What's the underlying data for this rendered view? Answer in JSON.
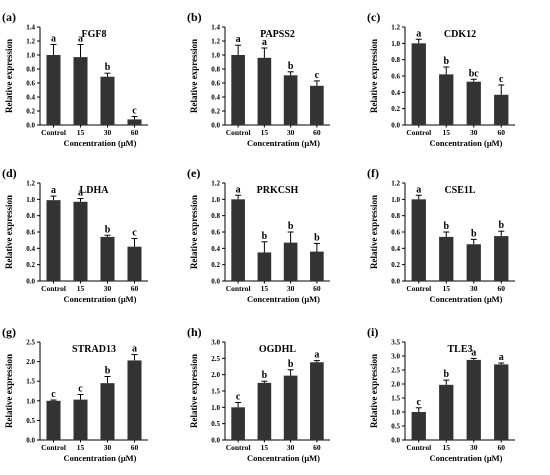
{
  "chart_data": [
    {
      "panel": "(a)",
      "type": "bar",
      "title": "FGF8",
      "ylabel": "Relative expression",
      "xlabel": "Concentration (μM)",
      "categories": [
        "Control",
        "15",
        "30",
        "60"
      ],
      "values": [
        1.0,
        0.97,
        0.69,
        0.08
      ],
      "errors": [
        0.15,
        0.18,
        0.05,
        0.04
      ],
      "letters": [
        "a",
        "a",
        "b",
        "c"
      ],
      "ylim": [
        0,
        1.4
      ],
      "yticks": [
        "0.0",
        "0.2",
        "0.4",
        "0.6",
        "0.8",
        "1.0",
        "1.2",
        "1.4"
      ],
      "grid": false,
      "legend": "none",
      "bar_color": "#333333"
    },
    {
      "panel": "(b)",
      "type": "bar",
      "title": "PAPSS2",
      "ylabel": "Relative expression",
      "xlabel": "Concentration (μM)",
      "categories": [
        "Control",
        "15",
        "30",
        "60"
      ],
      "values": [
        1.0,
        0.96,
        0.71,
        0.56
      ],
      "errors": [
        0.14,
        0.14,
        0.05,
        0.07
      ],
      "letters": [
        "a",
        "a",
        "b",
        "c"
      ],
      "ylim": [
        0,
        1.4
      ],
      "yticks": [
        "0.0",
        "0.2",
        "0.4",
        "0.6",
        "0.8",
        "1.0",
        "1.2",
        "1.4"
      ],
      "grid": false,
      "legend": "none",
      "bar_color": "#333333"
    },
    {
      "panel": "(c)",
      "type": "bar",
      "title": "CDK12",
      "ylabel": "Relative expression",
      "xlabel": "Concentration (μM)",
      "categories": [
        "Control",
        "15",
        "30",
        "60"
      ],
      "values": [
        1.0,
        0.62,
        0.53,
        0.37
      ],
      "errors": [
        0.05,
        0.09,
        0.03,
        0.12
      ],
      "letters": [
        "a",
        "b",
        "bc",
        "c"
      ],
      "ylim": [
        0,
        1.2
      ],
      "yticks": [
        "0.0",
        "0.2",
        "0.4",
        "0.6",
        "0.8",
        "1.0",
        "1.2"
      ],
      "grid": false,
      "legend": "none",
      "bar_color": "#333333"
    },
    {
      "panel": "(d)",
      "type": "bar",
      "title": "LDHA",
      "ylabel": "Relative expression",
      "xlabel": "Concentration (μM)",
      "categories": [
        "Control",
        "15",
        "30",
        "60"
      ],
      "values": [
        0.99,
        0.97,
        0.54,
        0.42
      ],
      "errors": [
        0.05,
        0.04,
        0.02,
        0.1
      ],
      "letters": [
        "a",
        "a",
        "b",
        "c"
      ],
      "ylim": [
        0,
        1.2
      ],
      "yticks": [
        "0.0",
        "0.2",
        "0.4",
        "0.6",
        "0.8",
        "1.0",
        "1.2"
      ],
      "grid": false,
      "legend": "none",
      "bar_color": "#333333"
    },
    {
      "panel": "(e)",
      "type": "bar",
      "title": "PRKCSH",
      "ylabel": "Relative expression",
      "xlabel": "Concentration (μM)",
      "categories": [
        "Control",
        "15",
        "30",
        "60"
      ],
      "values": [
        1.0,
        0.35,
        0.47,
        0.36
      ],
      "errors": [
        0.05,
        0.13,
        0.13,
        0.1
      ],
      "letters": [
        "a",
        "b",
        "b",
        "b"
      ],
      "ylim": [
        0,
        1.2
      ],
      "yticks": [
        "0.0",
        "0.2",
        "0.4",
        "0.6",
        "0.8",
        "1.0",
        "1.2"
      ],
      "grid": false,
      "legend": "none",
      "bar_color": "#333333"
    },
    {
      "panel": "(f)",
      "type": "bar",
      "title": "CSE1L",
      "ylabel": "Relative expression",
      "xlabel": "Concentration (μM)",
      "categories": [
        "Control",
        "15",
        "30",
        "60"
      ],
      "values": [
        1.0,
        0.54,
        0.45,
        0.55
      ],
      "errors": [
        0.05,
        0.06,
        0.06,
        0.06
      ],
      "letters": [
        "a",
        "b",
        "b",
        "b"
      ],
      "ylim": [
        0,
        1.2
      ],
      "yticks": [
        "0.0",
        "0.2",
        "0.4",
        "0.6",
        "0.8",
        "1.0",
        "1.2"
      ],
      "grid": false,
      "legend": "none",
      "bar_color": "#333333"
    },
    {
      "panel": "(g)",
      "type": "bar",
      "title": "STRAD13",
      "ylabel": "Relative expression",
      "xlabel": "Concentration (μM)",
      "categories": [
        "Control",
        "15",
        "30",
        "60"
      ],
      "values": [
        1.0,
        1.03,
        1.45,
        2.03
      ],
      "errors": [
        0.02,
        0.13,
        0.17,
        0.15
      ],
      "letters": [
        "c",
        "c",
        "b",
        "a"
      ],
      "ylim": [
        0,
        2.5
      ],
      "yticks": [
        "0.0",
        "0.5",
        "1.0",
        "1.5",
        "2.0",
        "2.5"
      ],
      "grid": false,
      "legend": "none",
      "bar_color": "#333333"
    },
    {
      "panel": "(h)",
      "type": "bar",
      "title": "OGDHL",
      "ylabel": "Relative expression",
      "xlabel": "Concentration (μM)",
      "categories": [
        "Control",
        "15",
        "30",
        "60"
      ],
      "values": [
        1.0,
        1.75,
        1.97,
        2.38
      ],
      "errors": [
        0.15,
        0.05,
        0.18,
        0.05
      ],
      "letters": [
        "c",
        "b",
        "b",
        "a"
      ],
      "ylim": [
        0,
        3.0
      ],
      "yticks": [
        "0.0",
        "0.5",
        "1.0",
        "1.5",
        "2.0",
        "2.5",
        "3.0"
      ],
      "grid": false,
      "legend": "none",
      "bar_color": "#333333"
    },
    {
      "panel": "(i)",
      "type": "bar",
      "title": "TLE3",
      "ylabel": "Relative expression",
      "xlabel": "Concentration (μM)",
      "categories": [
        "Control",
        "15",
        "30",
        "60"
      ],
      "values": [
        1.0,
        1.97,
        2.86,
        2.7
      ],
      "errors": [
        0.15,
        0.17,
        0.05,
        0.05
      ],
      "letters": [
        "c",
        "b",
        "a",
        "a"
      ],
      "ylim": [
        0,
        3.5
      ],
      "yticks": [
        "0.0",
        "0.5",
        "1.0",
        "1.5",
        "2.0",
        "2.5",
        "3.0",
        "3.5"
      ],
      "grid": false,
      "legend": "none",
      "bar_color": "#333333"
    }
  ]
}
